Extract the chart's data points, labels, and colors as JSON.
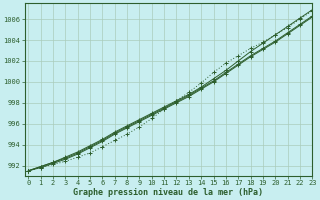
{
  "title": "Graphe pression niveau de la mer (hPa)",
  "x_ticks": [
    0,
    1,
    2,
    3,
    4,
    5,
    6,
    7,
    8,
    9,
    10,
    11,
    12,
    13,
    14,
    15,
    16,
    17,
    18,
    19,
    20,
    21,
    22,
    23
  ],
  "xlim": [
    -0.3,
    23
  ],
  "ylim": [
    991.0,
    1007.5
  ],
  "y_ticks": [
    992,
    994,
    996,
    998,
    1000,
    1002,
    1004,
    1006
  ],
  "bg_color": "#c8eef0",
  "grid_color": "#aaccbb",
  "line_color": "#2d5e2d",
  "series_main": [
    991.5,
    991.9,
    992.3,
    992.7,
    993.2,
    993.8,
    994.4,
    995.1,
    995.7,
    996.3,
    996.9,
    997.5,
    998.1,
    998.7,
    999.4,
    1000.1,
    1000.9,
    1001.7,
    1002.5,
    1003.2,
    1003.9,
    1004.7,
    1005.5,
    1006.3
  ],
  "series_high": [
    991.5,
    991.9,
    992.3,
    992.8,
    993.3,
    993.9,
    994.5,
    995.2,
    995.8,
    996.4,
    997.0,
    997.6,
    998.2,
    998.8,
    999.5,
    1000.3,
    1001.1,
    1002.0,
    1002.9,
    1003.7,
    1004.5,
    1005.3,
    1006.1,
    1006.9
  ],
  "series_low": [
    991.5,
    991.8,
    992.2,
    992.6,
    993.1,
    993.7,
    994.3,
    995.0,
    995.6,
    996.2,
    996.8,
    997.4,
    998.0,
    998.6,
    999.3,
    1000.0,
    1000.8,
    1001.6,
    1002.4,
    1003.1,
    1003.8,
    1004.6,
    1005.4,
    1006.2
  ],
  "series_outlier": [
    991.5,
    991.8,
    992.1,
    992.4,
    992.8,
    993.2,
    993.8,
    994.4,
    995.0,
    995.7,
    996.5,
    997.4,
    998.2,
    999.0,
    999.9,
    1000.9,
    1001.8,
    1002.5,
    1003.2,
    1003.8,
    1004.5,
    1005.2,
    1006.0,
    1006.8
  ]
}
